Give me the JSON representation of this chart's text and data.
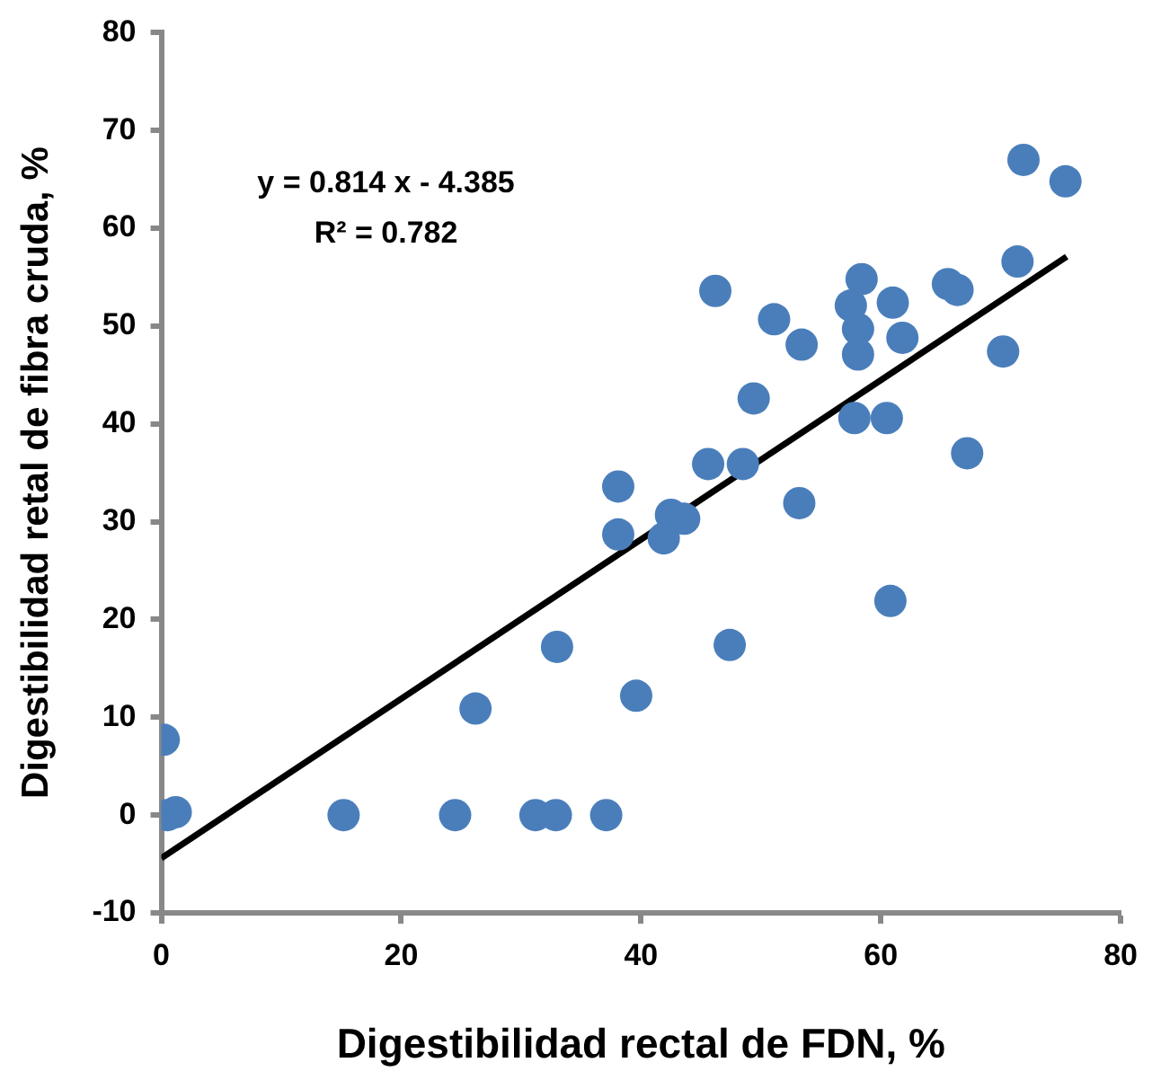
{
  "chart_data": {
    "type": "scatter",
    "xlabel": "Digestibilidad rectal de FDN, %",
    "ylabel": "Digestibilidad retal de fibra cruda, %",
    "xlim": [
      0,
      80
    ],
    "xticks": [
      0,
      20,
      40,
      60,
      80
    ],
    "ylim": [
      -10,
      80
    ],
    "yticks": [
      -10,
      0,
      10,
      20,
      30,
      40,
      50,
      60,
      70,
      80
    ],
    "grid": false,
    "legend": false,
    "marker": "circle",
    "annotations": [
      "y = 0.814 x - 4.385",
      "R² = 0.782"
    ],
    "series": [
      {
        "color": "#4a7ebb",
        "x": [
          0.2,
          0.5,
          1.2,
          15.2,
          24.5,
          31.2,
          32.9,
          37.1,
          26.2,
          33.0,
          39.6,
          47.4,
          60.8,
          38.1,
          38.1,
          41.9,
          42.5,
          43.6,
          45.6,
          48.5,
          53.2,
          49.4,
          57.8,
          60.5,
          67.2,
          46.2,
          51.1,
          53.4,
          58.4,
          57.5,
          61.0,
          58.1,
          58.1,
          61.8,
          65.6,
          66.4,
          71.4,
          70.2,
          71.9,
          75.4
        ],
        "values": [
          7.7,
          0,
          0.3,
          0,
          0,
          0,
          0,
          0,
          10.9,
          17.2,
          12.2,
          17.4,
          21.9,
          33.6,
          28.7,
          28.3,
          30.7,
          30.3,
          35.9,
          35.9,
          31.9,
          42.6,
          40.6,
          40.6,
          37.0,
          53.6,
          50.7,
          48.1,
          54.8,
          52.1,
          52.4,
          49.7,
          47.1,
          48.8,
          54.3,
          53.7,
          56.6,
          47.4,
          67.0,
          64.8
        ]
      },
      {
        "type": "line",
        "color": "#000000",
        "marker": "none",
        "x": [
          0,
          75.5
        ],
        "values": [
          -4.4,
          57.1
        ]
      }
    ]
  }
}
